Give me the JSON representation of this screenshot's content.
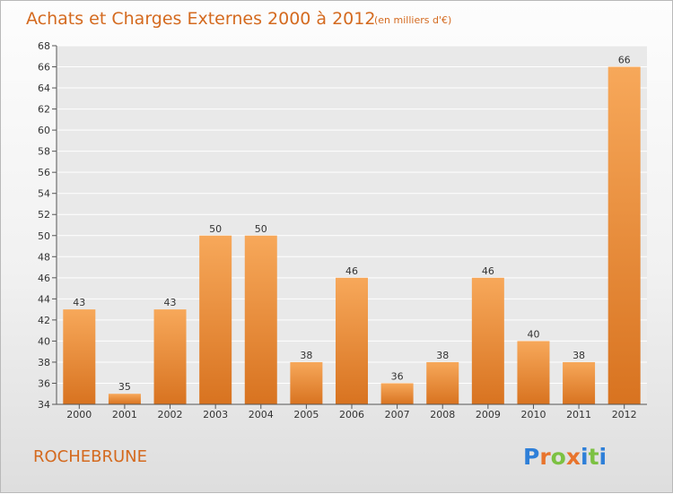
{
  "title": "Achats et Charges Externes 2000 à 2012",
  "subtitle": "(en milliers d'€)",
  "location": "ROCHEBRUNE",
  "logo": {
    "text": "Proxiti",
    "colors": [
      "#2e7fd8",
      "#e8742d",
      "#7cc142",
      "#e8742d",
      "#2e7fd8",
      "#7cc142",
      "#2e7fd8"
    ]
  },
  "colors": {
    "bar_top": "#f7a85a",
    "bar_bottom": "#d87320",
    "title": "#d46a1f",
    "grid": "#ffffff"
  },
  "chart_data": {
    "type": "bar",
    "categories": [
      "2000",
      "2001",
      "2002",
      "2003",
      "2004",
      "2005",
      "2006",
      "2007",
      "2008",
      "2009",
      "2010",
      "2011",
      "2012"
    ],
    "values": [
      43,
      35,
      43,
      50,
      50,
      38,
      46,
      36,
      38,
      46,
      40,
      38,
      66
    ],
    "ylim": [
      34,
      68
    ],
    "yticks": [
      34,
      36,
      38,
      40,
      42,
      44,
      46,
      48,
      50,
      52,
      54,
      56,
      58,
      60,
      62,
      64,
      66,
      68
    ],
    "grid": true,
    "data_labels": true
  }
}
